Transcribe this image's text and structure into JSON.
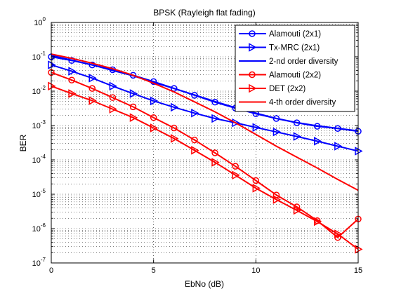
{
  "chart_data": {
    "type": "line",
    "title": "BPSK (Rayleigh flat fading)",
    "xlabel": "EbNo (dB)",
    "ylabel": "BER",
    "x_scale": "linear",
    "y_scale": "log",
    "xlim": [
      0,
      15
    ],
    "ylim": [
      1e-07,
      1
    ],
    "x_ticks": [
      0,
      5,
      10,
      15
    ],
    "x_tick_labels": [
      "0",
      "5",
      "10",
      "15"
    ],
    "y_ticks": [
      1e-07,
      1e-06,
      1e-05,
      0.0001,
      0.001,
      0.01,
      0.1,
      1
    ],
    "y_tick_bases": [
      "10",
      "10",
      "10",
      "10",
      "10",
      "10",
      "10",
      "10"
    ],
    "y_tick_exponents": [
      "-7",
      "-6",
      "-5",
      "-4",
      "-3",
      "-2",
      "-1",
      "0"
    ],
    "grid": "dotted, major and minor",
    "legend_position": "top-right",
    "series": [
      {
        "name": "Alamouti (2x1)",
        "color": "#0000ff",
        "marker": "circle",
        "x": [
          0,
          1,
          2,
          3,
          4,
          5,
          6,
          7,
          8,
          9,
          10,
          11,
          12,
          13,
          14,
          15
        ],
        "y": [
          0.1,
          0.078,
          0.058,
          0.042,
          0.029,
          0.019,
          0.012,
          0.0076,
          0.0048,
          0.0032,
          0.0022,
          0.0016,
          0.0012,
          0.00095,
          0.00082,
          0.00068
        ]
      },
      {
        "name": "Tx-MRC (2x1)",
        "color": "#0000ff",
        "marker": "triangle-right",
        "x": [
          0,
          1,
          2,
          3,
          4,
          5,
          6,
          7,
          8,
          9,
          10,
          11,
          12,
          13,
          14,
          15
        ],
        "y": [
          0.058,
          0.038,
          0.024,
          0.014,
          0.0085,
          0.0052,
          0.0034,
          0.0023,
          0.0016,
          0.0012,
          0.00088,
          0.00065,
          0.00048,
          0.00035,
          0.00025,
          0.00018
        ]
      },
      {
        "name": "2-nd order diversity",
        "color": "#0000ff",
        "marker": "none",
        "x": [
          0,
          1,
          2,
          3,
          4,
          5,
          6,
          7,
          8,
          9,
          10,
          11,
          12,
          13,
          14,
          15
        ],
        "y": [
          0.11,
          0.08,
          0.058,
          0.04,
          0.028,
          0.018,
          0.012,
          0.0078,
          0.005,
          0.0033,
          0.0023,
          0.0016,
          0.00122,
          0.00098,
          0.00083,
          0.0007
        ]
      },
      {
        "name": "Alamouti (2x2)",
        "color": "#ff0000",
        "marker": "circle",
        "x": [
          0,
          1,
          2,
          3,
          4,
          5,
          6,
          7,
          8,
          9,
          10,
          11,
          12,
          13,
          14,
          15
        ],
        "y": [
          0.035,
          0.021,
          0.012,
          0.0065,
          0.0035,
          0.0017,
          0.00085,
          0.00038,
          0.00016,
          6.5e-05,
          2.5e-05,
          9.5e-06,
          4.3e-06,
          1.7e-06,
          5.5e-07,
          1.9e-06
        ]
      },
      {
        "name": "DET (2x2)",
        "color": "#ff0000",
        "marker": "triangle-right",
        "x": [
          0,
          1,
          2,
          3,
          4,
          5,
          6,
          7,
          8,
          9,
          10,
          11,
          12,
          13,
          14,
          15
        ],
        "y": [
          0.014,
          0.0085,
          0.0053,
          0.003,
          0.0017,
          0.00085,
          0.00042,
          0.00019,
          8.5e-05,
          3.6e-05,
          1.5e-05,
          7e-06,
          3.4e-06,
          1.6e-06,
          7e-07,
          2.5e-07
        ]
      },
      {
        "name": "4-th order diversity",
        "color": "#ff0000",
        "marker": "none",
        "x": [
          0,
          1,
          2,
          3,
          4,
          5,
          6,
          7,
          8,
          9,
          10,
          11,
          12,
          13,
          14,
          15
        ],
        "y": [
          0.12,
          0.09,
          0.065,
          0.045,
          0.029,
          0.017,
          0.0095,
          0.0049,
          0.0025,
          0.0012,
          0.00055,
          0.00025,
          0.00012,
          5.8e-05,
          2.7e-05,
          1.3e-05
        ]
      }
    ]
  }
}
